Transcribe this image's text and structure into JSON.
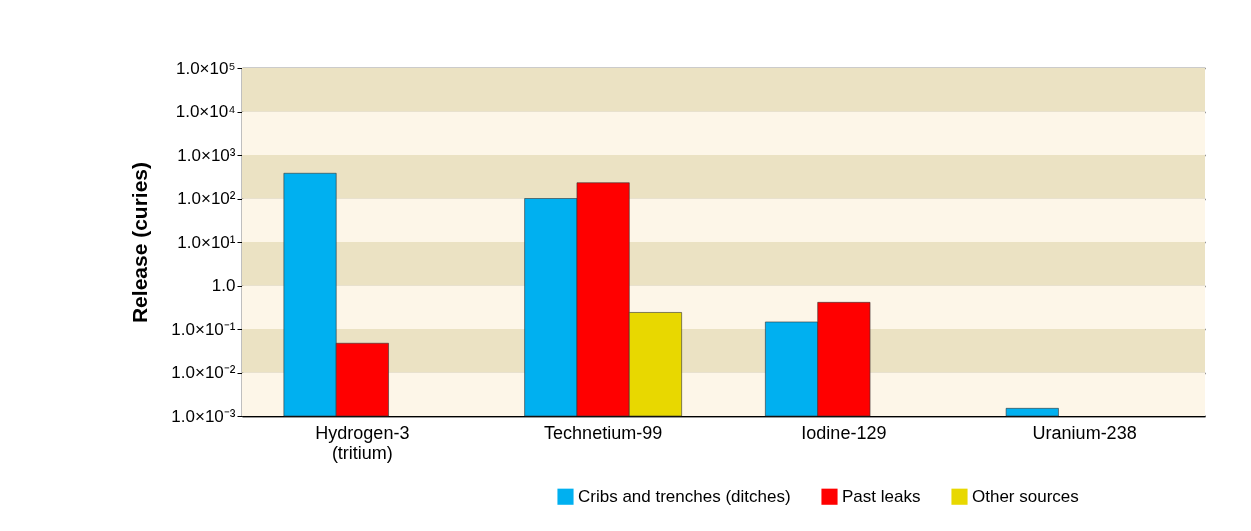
{
  "chart_data": {
    "type": "bar",
    "ylabel": "Release (curies)",
    "categories": [
      "Hydrogen-3 (tritium)",
      "Technetium-99",
      "Iodine-129",
      "Uranium-238"
    ],
    "series": [
      {
        "name": "Cribs and trenches (ditches)",
        "color": "#00b0f0",
        "values": [
          380,
          100,
          0.145,
          0.0015
        ]
      },
      {
        "name": "Past leaks",
        "color": "#ff0000",
        "values": [
          0.047,
          230,
          0.41,
          null
        ]
      },
      {
        "name": "Other sources",
        "color": "#e8d800",
        "values": [
          null,
          0.24,
          null,
          null
        ]
      }
    ],
    "log": true,
    "ylim": [
      0.001,
      100000
    ],
    "yticks": [
      {
        "value": 0.001,
        "label": "1.0×10⁻³"
      },
      {
        "value": 0.01,
        "label": "1.0×10⁻²"
      },
      {
        "value": 0.1,
        "label": "1.0×10⁻¹"
      },
      {
        "value": 1,
        "label": "1.0"
      },
      {
        "value": 10,
        "label": "1.0×10¹"
      },
      {
        "value": 100,
        "label": "1.0×10²"
      },
      {
        "value": 1000,
        "label": "1.0×10³"
      },
      {
        "value": 10000,
        "label": "1.0×10⁴"
      },
      {
        "value": 100000,
        "label": "1.0×10⁵"
      }
    ],
    "grid": true,
    "legend": "bottom right"
  }
}
